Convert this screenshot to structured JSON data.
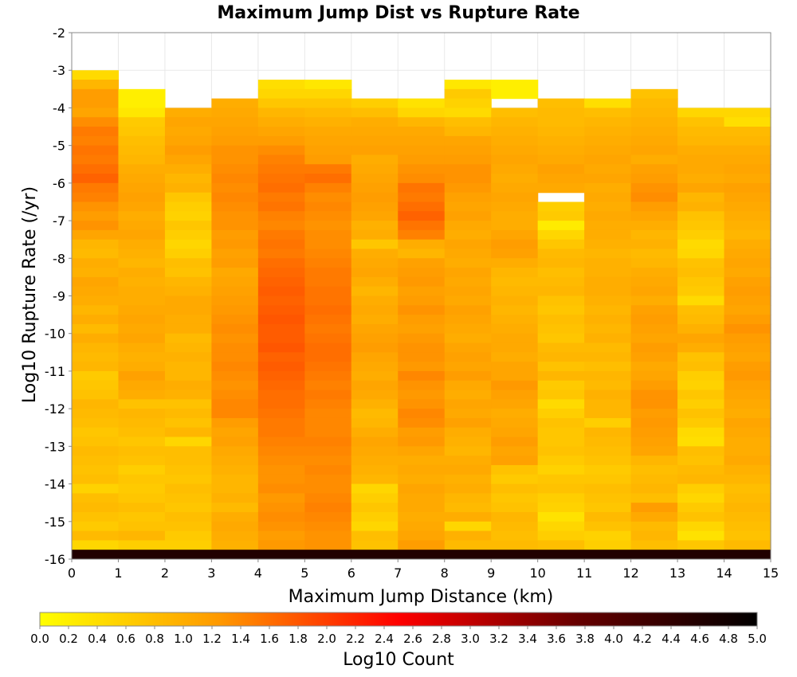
{
  "chart_data": {
    "type": "heatmap",
    "title": "Maximum Jump Dist vs Rupture Rate",
    "xlabel": "Maximum Jump Distance (km)",
    "ylabel": "Log10 Rupture Rate (/yr)",
    "xlim": [
      0,
      15
    ],
    "ylim": [
      -16,
      -2
    ],
    "x_ticks": [
      "0",
      "1",
      "2",
      "3",
      "4",
      "5",
      "6",
      "7",
      "8",
      "9",
      "10",
      "11",
      "12",
      "13",
      "14",
      "15"
    ],
    "y_ticks": [
      "-2",
      "-3",
      "-4",
      "-5",
      "-6",
      "-7",
      "-8",
      "-9",
      "-10",
      "-11",
      "-12",
      "-13",
      "-14",
      "-15",
      "-16"
    ],
    "bin_width_x": 1,
    "bin_height_y": 0.25,
    "grid": true,
    "colorbar": {
      "label": "Log10 Count",
      "range": [
        0,
        5
      ],
      "colors": [
        "#ffff00",
        "#ff9900",
        "#ff0000",
        "#660000",
        "#000000"
      ],
      "ticks": [
        "0.0",
        "0.2",
        "0.4",
        "0.6",
        "0.8",
        "1.0",
        "1.2",
        "1.4",
        "1.6",
        "1.8",
        "2.0",
        "2.2",
        "2.4",
        "2.6",
        "2.8",
        "3.0",
        "3.2",
        "3.4",
        "3.6",
        "3.8",
        "4.0",
        "4.2",
        "4.4",
        "4.6",
        "4.8",
        "5.0"
      ]
    },
    "columns": [
      {
        "x": 0,
        "top": -3.0,
        "values": [
          0.45,
          0.9,
          1.2,
          1.2,
          1.1,
          1.35,
          1.5,
          1.45,
          1.55,
          1.5,
          1.6,
          1.7,
          1.5,
          1.45,
          1.3,
          1.2,
          1.3,
          1.1,
          0.9,
          0.85,
          1.0,
          0.95,
          1.1,
          1.05,
          1.0,
          0.9,
          1.0,
          0.85,
          1.0,
          0.9,
          0.85,
          0.9,
          0.65,
          0.7,
          0.75,
          0.9,
          0.85,
          0.8,
          0.7,
          0.75,
          0.85,
          0.8,
          0.75,
          0.8,
          0.55,
          0.8,
          0.85,
          0.75,
          0.65,
          0.85,
          0.5,
          0.7
        ]
      },
      {
        "x": 1,
        "top": -3.5,
        "values": [
          0.2,
          0.2,
          0.3,
          0.65,
          0.7,
          0.8,
          0.85,
          0.9,
          1.0,
          1.05,
          1.1,
          1.15,
          1.1,
          1.0,
          1.05,
          1.1,
          1.0,
          0.95,
          0.9,
          1.0,
          0.95,
          1.0,
          1.0,
          1.05,
          1.1,
          1.05,
          1.1,
          1.0,
          0.95,
          1.0,
          1.15,
          1.05,
          1.0,
          0.75,
          0.9,
          0.85,
          0.8,
          0.7,
          0.8,
          0.75,
          0.6,
          0.7,
          0.65,
          0.7,
          0.8,
          0.7,
          0.75,
          0.9,
          0.6,
          0.7,
          0.4
        ]
      },
      {
        "x": 2,
        "top": -4.0,
        "values": [
          1.0,
          1.1,
          1.05,
          1.1,
          1.2,
          1.1,
          1.0,
          0.9,
          0.95,
          0.7,
          0.6,
          0.55,
          0.7,
          0.6,
          0.5,
          0.6,
          0.8,
          0.75,
          0.9,
          0.95,
          1.05,
          1.05,
          1.0,
          1.0,
          0.85,
          0.9,
          0.95,
          0.9,
          0.9,
          1.0,
          0.95,
          0.75,
          0.85,
          0.75,
          0.9,
          0.5,
          0.8,
          0.8,
          0.75,
          0.7,
          0.8,
          0.75,
          0.7,
          0.8,
          0.75,
          0.65,
          0.6,
          0.8,
          0.6,
          0.75,
          0.55
        ]
      },
      {
        "x": 3,
        "top": -3.75,
        "values": [
          1.0,
          1.05,
          1.1,
          1.15,
          1.2,
          1.3,
          1.3,
          1.35,
          1.4,
          1.35,
          1.4,
          1.35,
          1.3,
          1.3,
          1.2,
          1.25,
          1.15,
          1.2,
          1.05,
          1.1,
          1.15,
          1.2,
          1.25,
          1.3,
          1.35,
          1.3,
          1.35,
          1.35,
          1.4,
          1.35,
          1.3,
          1.35,
          1.4,
          1.4,
          1.2,
          1.1,
          1.15,
          1.05,
          1.0,
          0.95,
          0.9,
          0.9,
          0.95,
          0.85,
          1.0,
          1.05,
          1.0,
          0.95,
          0.9,
          0.85,
          0.8
        ]
      },
      {
        "x": 4,
        "top": -3.25,
        "values": [
          0.4,
          0.5,
          0.7,
          0.9,
          1.0,
          1.1,
          1.2,
          1.35,
          1.45,
          1.5,
          1.55,
          1.6,
          1.5,
          1.55,
          1.45,
          1.4,
          1.5,
          1.55,
          1.5,
          1.6,
          1.65,
          1.7,
          1.75,
          1.7,
          1.75,
          1.8,
          1.75,
          1.75,
          1.8,
          1.7,
          1.75,
          1.7,
          1.65,
          1.6,
          1.6,
          1.55,
          1.5,
          1.5,
          1.45,
          1.4,
          1.35,
          1.3,
          1.3,
          1.35,
          1.25,
          1.3,
          1.35,
          1.3,
          1.2,
          1.25,
          1.1
        ]
      },
      {
        "x": 5,
        "top": -3.25,
        "values": [
          0.3,
          0.5,
          0.7,
          0.85,
          0.95,
          1.05,
          1.1,
          1.15,
          1.2,
          1.5,
          1.6,
          1.45,
          1.35,
          1.4,
          1.35,
          1.3,
          1.35,
          1.35,
          1.4,
          1.45,
          1.5,
          1.5,
          1.55,
          1.55,
          1.6,
          1.55,
          1.5,
          1.55,
          1.6,
          1.6,
          1.55,
          1.5,
          1.45,
          1.5,
          1.45,
          1.4,
          1.4,
          1.4,
          1.45,
          1.4,
          1.35,
          1.4,
          1.35,
          1.35,
          1.4,
          1.45,
          1.4,
          1.35,
          1.3,
          1.3,
          1.2
        ]
      },
      {
        "x": 6,
        "top": -3.75,
        "values": [
          0.6,
          0.8,
          1.0,
          1.05,
          1.1,
          1.15,
          1.0,
          1.05,
          1.1,
          1.15,
          1.2,
          1.15,
          1.1,
          0.95,
          1.0,
          0.7,
          1.0,
          1.05,
          1.1,
          1.0,
          0.9,
          1.0,
          1.05,
          1.0,
          1.1,
          1.15,
          1.2,
          1.1,
          1.05,
          1.0,
          1.1,
          1.05,
          0.95,
          0.85,
          0.9,
          1.0,
          1.1,
          1.05,
          1.0,
          0.95,
          0.9,
          0.5,
          0.6,
          0.7,
          0.6,
          0.5,
          0.8,
          0.75,
          0.8,
          0.7,
          0.6
        ]
      },
      {
        "x": 7,
        "top": -3.75,
        "values": [
          0.35,
          0.5,
          0.9,
          1.05,
          1.1,
          1.15,
          1.2,
          1.3,
          1.35,
          1.55,
          1.5,
          1.6,
          1.7,
          1.55,
          1.45,
          1.0,
          0.9,
          1.15,
          1.2,
          1.25,
          1.15,
          1.2,
          1.3,
          1.2,
          1.15,
          1.25,
          1.3,
          1.3,
          1.25,
          1.4,
          1.3,
          1.25,
          1.3,
          1.4,
          1.35,
          1.2,
          1.25,
          1.1,
          1.0,
          1.05,
          1.0,
          1.1,
          1.05,
          1.05,
          1.0,
          1.05,
          1.1,
          1.2,
          1.15,
          1.0,
          0.95
        ]
      },
      {
        "x": 8,
        "top": -3.25,
        "values": [
          0.3,
          0.65,
          0.55,
          0.45,
          0.8,
          0.9,
          1.1,
          1.15,
          1.2,
          1.3,
          1.3,
          1.25,
          1.15,
          1.1,
          1.15,
          1.05,
          1.0,
          1.1,
          1.05,
          1.0,
          1.1,
          1.05,
          1.1,
          1.05,
          1.15,
          1.1,
          1.05,
          1.0,
          1.1,
          1.15,
          1.1,
          1.2,
          1.05,
          1.0,
          1.1,
          1.05,
          1.15,
          1.0,
          0.95,
          0.9,
          1.0,
          1.05,
          0.95,
          1.0,
          0.9,
          0.85,
          1.0,
          0.5,
          0.95,
          0.85,
          0.8
        ]
      },
      {
        "x": 9,
        "top": -3.25,
        "values": [
          0.2,
          0.2,
          null,
          0.8,
          0.9,
          0.95,
          1.0,
          1.05,
          1.1,
          1.05,
          1.0,
          1.05,
          1.1,
          1.05,
          1.0,
          1.0,
          1.1,
          1.2,
          1.15,
          1.0,
          0.9,
          0.85,
          0.9,
          0.95,
          0.9,
          0.95,
          1.0,
          1.05,
          1.05,
          1.0,
          1.1,
          1.1,
          1.25,
          1.15,
          1.1,
          1.0,
          1.05,
          1.1,
          1.2,
          1.1,
          1.15,
          0.75,
          0.65,
          0.8,
          0.7,
          0.75,
          0.9,
          0.85,
          0.8,
          0.85,
          0.9
        ]
      },
      {
        "x": 10,
        "top": -3.75,
        "values": [
          0.8,
          0.85,
          0.85,
          0.9,
          0.95,
          1.0,
          1.05,
          1.15,
          1.1,
          1.05,
          null,
          0.6,
          0.65,
          0.25,
          0.5,
          0.7,
          0.85,
          0.9,
          0.8,
          0.85,
          0.9,
          0.75,
          0.7,
          0.8,
          0.75,
          0.7,
          0.85,
          0.9,
          0.75,
          0.9,
          0.65,
          0.7,
          0.45,
          0.6,
          0.75,
          0.7,
          0.7,
          0.75,
          0.65,
          0.55,
          0.7,
          0.75,
          0.6,
          0.55,
          0.35,
          0.5,
          0.6,
          0.8,
          0.7,
          0.75,
          0.65
        ]
      },
      {
        "x": 11,
        "top": -3.75,
        "values": [
          0.4,
          0.8,
          0.9,
          0.95,
          1.0,
          1.05,
          1.1,
          1.05,
          1.1,
          1.0,
          1.05,
          1.0,
          1.05,
          1.0,
          1.0,
          0.95,
          0.9,
          0.95,
          0.95,
          1.0,
          1.0,
          0.95,
          0.9,
          0.95,
          0.9,
          0.95,
          0.85,
          0.9,
          0.8,
          0.9,
          0.85,
          0.95,
          0.9,
          0.9,
          0.6,
          0.9,
          0.85,
          0.8,
          0.75,
          0.65,
          0.7,
          0.8,
          0.75,
          0.7,
          0.85,
          0.75,
          0.55,
          0.6,
          0.5,
          0.8,
          0.6
        ]
      },
      {
        "x": 12,
        "top": -3.5,
        "values": [
          0.75,
          0.85,
          0.9,
          0.95,
          1.0,
          1.05,
          1.1,
          1.0,
          1.15,
          1.2,
          1.3,
          1.35,
          1.2,
          1.1,
          1.0,
          0.9,
          0.95,
          0.85,
          0.9,
          1.0,
          1.05,
          1.1,
          1.0,
          1.15,
          1.2,
          1.15,
          1.1,
          1.2,
          1.15,
          1.05,
          1.1,
          1.2,
          1.3,
          1.3,
          1.2,
          1.25,
          1.2,
          1.15,
          1.1,
          0.9,
          0.8,
          0.85,
          0.9,
          0.8,
          1.2,
          1.05,
          0.85,
          0.9,
          0.8,
          0.75,
          0.7
        ]
      },
      {
        "x": 13,
        "top": -4.0,
        "values": [
          0.5,
          0.75,
          0.85,
          0.9,
          1.0,
          1.05,
          1.05,
          1.0,
          1.1,
          0.9,
          0.95,
          0.75,
          0.7,
          0.6,
          0.45,
          0.5,
          0.75,
          0.8,
          0.7,
          0.65,
          0.45,
          0.8,
          0.85,
          0.95,
          1.1,
          1.0,
          0.75,
          0.8,
          0.6,
          0.55,
          0.7,
          0.6,
          0.75,
          0.65,
          0.45,
          0.4,
          0.8,
          0.75,
          0.85,
          0.9,
          0.6,
          0.5,
          0.65,
          0.75,
          0.5,
          0.35,
          0.7,
          0.6,
          0.45,
          0.3,
          0.7
        ]
      },
      {
        "x": 14,
        "top": -4.0,
        "values": [
          0.5,
          0.4,
          0.85,
          0.9,
          1.0,
          1.05,
          1.1,
          1.05,
          1.15,
          1.1,
          1.05,
          1.0,
          0.95,
          0.9,
          1.0,
          1.05,
          1.1,
          1.05,
          1.15,
          1.2,
          1.15,
          1.1,
          1.2,
          1.3,
          1.2,
          1.15,
          1.1,
          1.2,
          1.25,
          1.15,
          1.1,
          1.05,
          1.0,
          1.1,
          1.05,
          1.0,
          1.0,
          1.05,
          0.95,
          0.9,
          0.8,
          0.85,
          0.9,
          0.85,
          0.8,
          0.75,
          0.85,
          0.7,
          0.65,
          0.75,
          0.7
        ]
      }
    ],
    "bottom_row": {
      "y_range": [
        -16,
        -15.75
      ],
      "value": 4.6
    }
  }
}
